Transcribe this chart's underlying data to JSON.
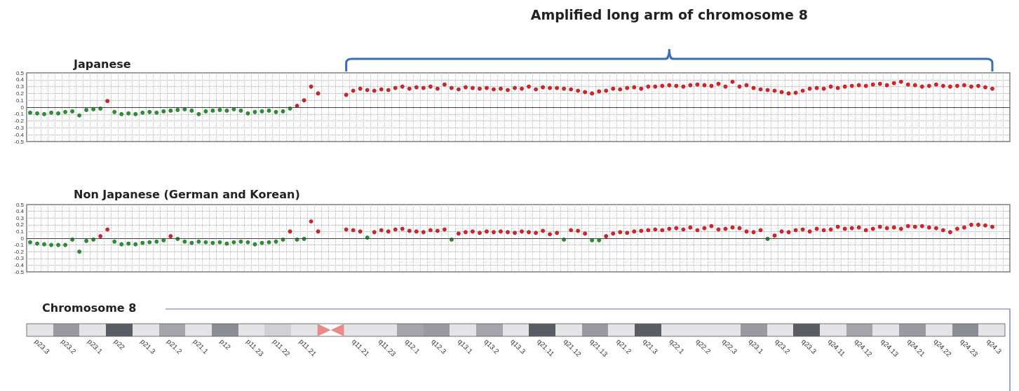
{
  "chart_data": [
    {
      "type": "scatter",
      "title": "Japanese",
      "annotations": [
        "Amplified long arm of chromosome 8"
      ],
      "marker": "circle",
      "grid": true,
      "tick_labels": "y",
      "ylim": [
        -0.5,
        0.5
      ],
      "yticks": [
        -0.5,
        -0.4,
        -0.3,
        -0.2,
        -0.1,
        0,
        0.1,
        0.2,
        0.3,
        0.4,
        0.5
      ],
      "ref_lines": [
        {
          "axis": "y",
          "value": 0,
          "color": "#404040"
        }
      ],
      "categories": [
        null,
        null,
        null,
        null,
        null,
        null,
        null,
        null,
        null,
        null,
        null,
        null,
        null,
        null,
        null,
        null,
        null,
        null,
        null,
        null,
        null,
        null,
        null,
        null,
        null,
        null,
        null,
        null,
        null,
        null,
        null,
        null,
        null,
        null,
        null,
        null,
        null,
        null,
        null,
        null,
        null,
        null,
        null,
        null,
        null,
        null,
        null,
        null,
        null,
        null,
        null,
        null,
        null,
        null,
        null,
        null,
        null,
        null,
        null,
        null,
        null,
        null,
        null,
        null,
        null,
        null,
        null,
        null,
        null,
        null,
        null,
        null,
        null,
        null,
        null,
        null,
        null,
        null,
        null,
        null,
        null,
        null,
        null,
        null,
        null,
        null,
        null,
        null,
        null,
        null,
        null,
        null,
        null,
        null,
        null,
        null,
        null,
        null,
        null,
        null,
        null,
        null,
        null,
        null,
        null,
        null,
        null,
        null,
        null,
        null,
        null,
        null,
        null,
        null,
        null,
        null,
        null,
        null,
        null,
        null,
        null,
        null,
        null,
        null,
        null,
        null,
        null,
        null,
        null,
        null,
        null,
        null,
        null,
        null,
        null,
        null,
        null,
        null,
        null,
        null
      ],
      "series": [
        {
          "color": "#2e8b37",
          "values": [
            -0.08,
            -0.09,
            -0.1,
            -0.08,
            -0.09,
            -0.07,
            -0.06,
            -0.12,
            -0.04,
            -0.03,
            -0.02,
            null,
            -0.07,
            -0.1,
            -0.09,
            -0.1,
            -0.08,
            -0.07,
            -0.08,
            -0.06,
            -0.05,
            -0.04,
            -0.03,
            -0.05,
            -0.1,
            -0.06,
            -0.05,
            -0.04,
            -0.05,
            -0.03,
            -0.05,
            -0.09,
            -0.07,
            -0.06,
            -0.05,
            -0.07,
            -0.06,
            -0.02,
            null,
            null,
            null,
            null,
            null,
            null,
            null,
            null,
            null,
            null,
            null,
            null,
            null,
            null,
            null,
            null,
            null,
            null,
            null,
            null,
            null,
            null,
            null,
            null,
            null,
            null,
            null,
            null,
            null,
            null,
            null,
            null,
            null,
            null,
            null,
            null,
            null,
            null,
            null,
            null,
            null,
            null,
            null,
            null,
            null,
            null,
            null,
            null,
            null,
            null,
            null,
            null,
            null,
            null,
            null,
            null,
            null,
            null,
            null,
            null,
            null,
            null,
            null,
            null,
            null,
            null,
            null,
            null,
            null,
            null,
            null,
            null,
            null,
            null,
            null,
            null,
            null,
            null,
            null,
            null,
            null,
            null,
            null,
            null,
            null,
            null,
            null,
            null,
            null,
            null,
            null,
            null,
            null,
            null,
            null,
            null,
            null,
            null,
            null,
            null,
            null,
            null
          ]
        },
        {
          "color": "#c8282d",
          "values": [
            null,
            null,
            null,
            null,
            null,
            null,
            null,
            null,
            null,
            null,
            null,
            0.09,
            null,
            null,
            null,
            null,
            null,
            null,
            null,
            null,
            null,
            null,
            null,
            null,
            null,
            null,
            null,
            null,
            null,
            null,
            null,
            null,
            null,
            null,
            null,
            null,
            null,
            null,
            0.02,
            0.1,
            0.3,
            0.2,
            null,
            null,
            null,
            0.18,
            0.24,
            0.27,
            0.25,
            0.24,
            0.26,
            0.25,
            0.28,
            0.3,
            0.27,
            0.29,
            0.28,
            0.3,
            0.27,
            0.33,
            0.28,
            0.26,
            0.29,
            0.28,
            0.27,
            0.28,
            0.26,
            0.27,
            0.25,
            0.28,
            0.27,
            0.3,
            0.26,
            0.29,
            0.28,
            0.28,
            0.27,
            0.26,
            0.24,
            0.22,
            0.2,
            0.23,
            0.24,
            0.27,
            0.26,
            0.28,
            0.29,
            0.27,
            0.3,
            0.3,
            0.31,
            0.32,
            0.31,
            0.3,
            0.32,
            0.33,
            0.32,
            0.31,
            0.34,
            0.3,
            0.37,
            0.3,
            0.32,
            0.28,
            0.26,
            0.25,
            0.24,
            0.22,
            0.2,
            0.21,
            0.24,
            0.27,
            0.28,
            0.27,
            0.3,
            0.28,
            0.3,
            0.31,
            0.32,
            0.31,
            0.33,
            0.34,
            0.32,
            0.35,
            0.37,
            0.33,
            0.32,
            0.3,
            0.31,
            0.33,
            0.31,
            0.3,
            0.31,
            0.32,
            0.3,
            0.31,
            0.29,
            0.27,
            null,
            null
          ]
        }
      ]
    },
    {
      "type": "scatter",
      "title": "Non Japanese (German and Korean)",
      "marker": "circle",
      "grid": true,
      "tick_labels": "y",
      "ylim": [
        -0.5,
        0.5
      ],
      "yticks": [
        -0.5,
        -0.4,
        -0.3,
        -0.2,
        -0.1,
        0,
        0.1,
        0.2,
        0.3,
        0.4,
        0.5
      ],
      "ref_lines": [
        {
          "axis": "y",
          "value": 0,
          "color": "#404040"
        }
      ],
      "categories": [
        null,
        null,
        null,
        null,
        null,
        null,
        null,
        null,
        null,
        null,
        null,
        null,
        null,
        null,
        null,
        null,
        null,
        null,
        null,
        null,
        null,
        null,
        null,
        null,
        null,
        null,
        null,
        null,
        null,
        null,
        null,
        null,
        null,
        null,
        null,
        null,
        null,
        null,
        null,
        null,
        null,
        null,
        null,
        null,
        null,
        null,
        null,
        null,
        null,
        null,
        null,
        null,
        null,
        null,
        null,
        null,
        null,
        null,
        null,
        null,
        null,
        null,
        null,
        null,
        null,
        null,
        null,
        null,
        null,
        null,
        null,
        null,
        null,
        null,
        null,
        null,
        null,
        null,
        null,
        null,
        null,
        null,
        null,
        null,
        null,
        null,
        null,
        null,
        null,
        null,
        null,
        null,
        null,
        null,
        null,
        null,
        null,
        null,
        null,
        null,
        null,
        null,
        null,
        null,
        null,
        null,
        null,
        null,
        null,
        null,
        null,
        null,
        null,
        null,
        null,
        null,
        null,
        null,
        null,
        null,
        null,
        null,
        null,
        null,
        null,
        null,
        null,
        null,
        null,
        null,
        null,
        null,
        null,
        null,
        null,
        null,
        null,
        null,
        null,
        null
      ],
      "series": [
        {
          "color": "#2e8b37",
          "values": [
            -0.06,
            -0.08,
            -0.09,
            -0.1,
            -0.1,
            -0.1,
            -0.02,
            -0.2,
            -0.04,
            -0.02,
            null,
            null,
            -0.05,
            -0.09,
            -0.08,
            -0.09,
            -0.07,
            -0.06,
            -0.05,
            -0.03,
            null,
            -0.01,
            -0.05,
            -0.07,
            -0.05,
            -0.06,
            -0.07,
            -0.06,
            -0.08,
            -0.06,
            -0.05,
            -0.06,
            -0.09,
            -0.07,
            -0.06,
            -0.05,
            -0.02,
            null,
            -0.02,
            -0.01,
            null,
            null,
            null,
            null,
            null,
            null,
            null,
            null,
            0.01,
            null,
            null,
            null,
            null,
            null,
            null,
            null,
            null,
            null,
            null,
            null,
            -0.02,
            null,
            null,
            null,
            null,
            null,
            null,
            null,
            null,
            null,
            null,
            null,
            null,
            null,
            null,
            null,
            -0.02,
            null,
            null,
            null,
            -0.03,
            -0.03,
            null,
            null,
            null,
            null,
            null,
            null,
            null,
            null,
            null,
            null,
            null,
            null,
            null,
            null,
            null,
            null,
            null,
            null,
            null,
            null,
            null,
            null,
            null,
            -0.01,
            null,
            null,
            null,
            null,
            null,
            null,
            null,
            null,
            null,
            null,
            null,
            null,
            null,
            null,
            null,
            null,
            null,
            null,
            null,
            null,
            null,
            null,
            null,
            null,
            null,
            null,
            null,
            null,
            null,
            null,
            null,
            null,
            null,
            null
          ]
        },
        {
          "color": "#c8282d",
          "values": [
            null,
            null,
            null,
            null,
            null,
            null,
            null,
            null,
            null,
            null,
            0.03,
            0.13,
            null,
            null,
            null,
            null,
            null,
            null,
            null,
            null,
            0.03,
            null,
            null,
            null,
            null,
            null,
            null,
            null,
            null,
            null,
            null,
            null,
            null,
            null,
            null,
            null,
            null,
            0.1,
            null,
            null,
            0.25,
            0.1,
            null,
            null,
            null,
            0.13,
            0.12,
            0.1,
            null,
            0.09,
            0.12,
            0.1,
            0.13,
            0.14,
            0.11,
            0.1,
            0.09,
            0.12,
            0.11,
            0.13,
            null,
            0.07,
            0.09,
            0.1,
            0.08,
            0.1,
            0.09,
            0.1,
            0.09,
            0.08,
            0.1,
            0.09,
            0.08,
            0.11,
            0.06,
            0.08,
            null,
            0.12,
            0.11,
            0.07,
            null,
            null,
            0.03,
            0.07,
            0.09,
            0.08,
            0.1,
            0.11,
            0.12,
            0.13,
            0.12,
            0.14,
            0.15,
            0.13,
            0.16,
            0.12,
            0.15,
            0.18,
            0.13,
            0.14,
            0.16,
            0.15,
            0.1,
            0.09,
            0.12,
            null,
            0.04,
            0.1,
            0.09,
            0.12,
            0.13,
            0.1,
            0.14,
            0.12,
            0.13,
            0.17,
            0.14,
            0.15,
            0.16,
            0.12,
            0.14,
            0.17,
            0.15,
            0.16,
            0.14,
            0.18,
            0.17,
            0.18,
            0.16,
            0.15,
            0.12,
            0.09,
            0.14,
            0.16,
            0.2,
            0.2,
            0.19,
            0.17,
            null,
            null
          ]
        }
      ]
    },
    {
      "type": "other",
      "title": "Chromosome 8",
      "categories": [
        "p23.3",
        "p23.2",
        "p23.1",
        "p22",
        "p21.3",
        "p21.2",
        "p21.1",
        "p12",
        "p11.23",
        "p11.22",
        "p11.21",
        null,
        "q11.21",
        "q11.23",
        "q12.1",
        "q12.3",
        "q13.1",
        "q13.2",
        "q13.3",
        "q21.11",
        "q21.12",
        "q21.13",
        "q21.2",
        "q21.3",
        "q22.1",
        "q22.2",
        "q22.3",
        "q23.1",
        "q23.2",
        "q23.3",
        "q24.11",
        "q24.12",
        "q24.13",
        "q24.21",
        "q24.22",
        "q24.23",
        "q24.3"
      ],
      "colors": [
        "#e4e4e6",
        "#9a9aa0",
        "#e4e4e6",
        "#5c5c64",
        "#e4e4e6",
        "#a4a4aa",
        "#e4e4e6",
        "#8c8c94",
        "#e4e4e6",
        "#d0d0d4",
        "#e4e4e6",
        "#e88a8a",
        "#e4e4e6",
        "#e4e4e6",
        "#a4a4aa",
        "#9a9aa0",
        "#e4e4e6",
        "#a4a4aa",
        "#e4e4e6",
        "#5c5c64",
        "#e4e4e6",
        "#9a9aa0",
        "#e4e4e6",
        "#5c5c64",
        "#e4e4e6",
        "#e4e4e6",
        "#e4e4e6",
        "#9a9aa0",
        "#e4e4e6",
        "#5c5c64",
        "#e4e4e6",
        "#a4a4aa",
        "#e4e4e6",
        "#9a9aa0",
        "#e4e4e6",
        "#8c8c94",
        "#e4e4e6"
      ]
    }
  ]
}
